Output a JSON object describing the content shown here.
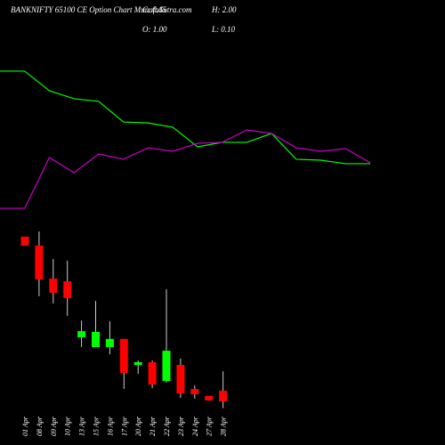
{
  "chart_data": [
    {
      "type": "candlestick",
      "title": "BANKNIFTY 65100 CE Option Chart MunafaSutra.com",
      "stats": [
        "C: 0.45",
        "H: 2.00",
        "O: 1.00",
        "L: 0.10"
      ],
      "categories": [
        "01 Apr",
        "08 Apr",
        "09 Apr",
        "10 Apr",
        "13 Apr",
        "15 Apr",
        "16 Apr",
        "17 Apr",
        "20 Apr",
        "21 Apr",
        "22 Apr",
        "23 Apr",
        "24 Apr",
        "27 Apr",
        "28 Apr"
      ],
      "open": [
        8.94,
        8.48,
        6.78,
        6.64,
        3.75,
        3.25,
        3.25,
        3.67,
        2.33,
        2.47,
        1.5,
        2.33,
        1.09,
        0.73,
        1.0
      ],
      "high": [
        8.94,
        9.21,
        7.79,
        7.7,
        4.62,
        5.63,
        4.58,
        3.67,
        2.56,
        2.56,
        6.23,
        2.66,
        1.28,
        0.73,
        2.0
      ],
      "low": [
        8.48,
        5.87,
        5.5,
        4.86,
        3.25,
        3.25,
        2.88,
        1.09,
        1.87,
        1.14,
        1.41,
        0.63,
        0.59,
        0.5,
        0.1
      ],
      "close": [
        8.48,
        6.74,
        6.05,
        5.77,
        4.07,
        4.03,
        3.67,
        1.92,
        2.47,
        1.32,
        3.06,
        0.86,
        0.82,
        0.5,
        0.45
      ],
      "up_color": "#00ff00",
      "down_color": "#ff0000"
    },
    {
      "type": "line",
      "series": [
        {
          "name": "green",
          "color": "#00ff00",
          "values": [
            17.47,
            17.47,
            16.46,
            16.05,
            15.91,
            14.85,
            14.8,
            14.58,
            13.57,
            13.8,
            13.8,
            14.26,
            12.93,
            12.88,
            12.7,
            12.7
          ]
        },
        {
          "name": "magenta",
          "color": "#cc00cc",
          "values": [
            10.4,
            10.4,
            13.02,
            12.24,
            13.2,
            12.93,
            13.52,
            13.34,
            13.75,
            13.8,
            14.44,
            14.26,
            13.52,
            13.34,
            13.48,
            12.75
          ]
        }
      ]
    }
  ]
}
